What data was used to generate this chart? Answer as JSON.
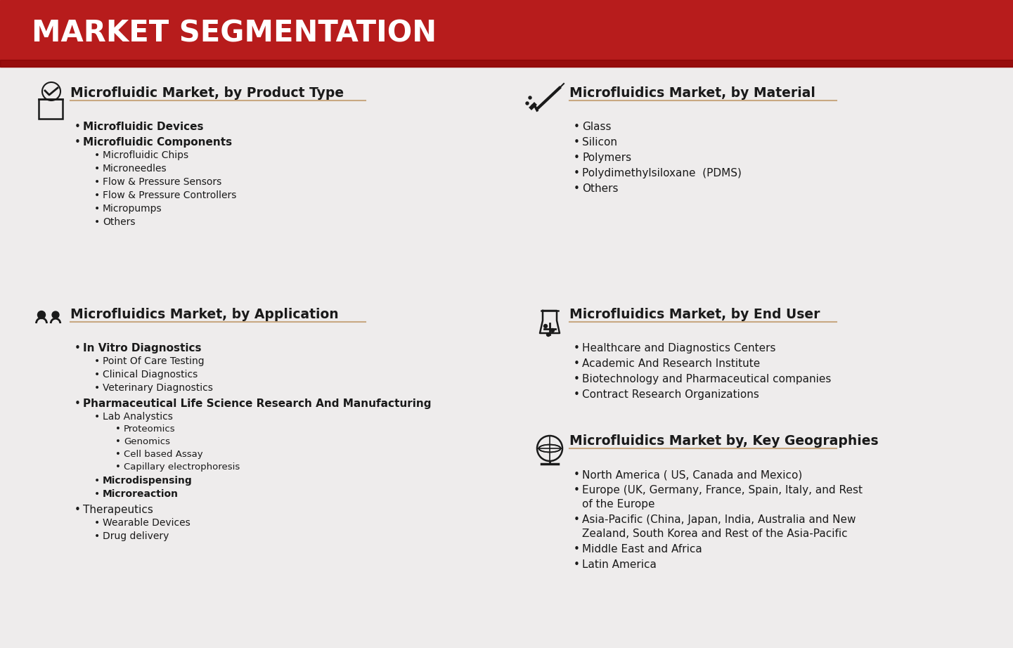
{
  "title": "MARKET SEGMENTATION",
  "title_bg_color": "#b71c1c",
  "title_text_color": "#ffffff",
  "bg_color": "#eeecec",
  "text_color": "#1a1a1a",
  "underline_color": "#c8a882",
  "section_title_color": "#1a1a1a",
  "sections": [
    {
      "id": "product",
      "col": 0,
      "row": 0,
      "title": "Microfluidic Market, by Product Type",
      "items": [
        {
          "text": "Microfluidic Devices",
          "level": 1,
          "bold": true
        },
        {
          "text": "Microfluidic Components",
          "level": 1,
          "bold": true
        },
        {
          "text": "Microfluidic Chips",
          "level": 2,
          "bold": false
        },
        {
          "text": "Microneedles",
          "level": 2,
          "bold": false
        },
        {
          "text": "Flow & Pressure Sensors",
          "level": 2,
          "bold": false
        },
        {
          "text": "Flow & Pressure Controllers",
          "level": 2,
          "bold": false
        },
        {
          "text": "Micropumps",
          "level": 2,
          "bold": false
        },
        {
          "text": "Others",
          "level": 2,
          "bold": false
        }
      ]
    },
    {
      "id": "application",
      "col": 0,
      "row": 1,
      "title": "Microfluidics Market, by Application",
      "items": [
        {
          "text": "In Vitro Diagnostics",
          "level": 1,
          "bold": true
        },
        {
          "text": "Point Of Care Testing",
          "level": 2,
          "bold": false
        },
        {
          "text": "Clinical Diagnostics",
          "level": 2,
          "bold": false
        },
        {
          "text": "Veterinary Diagnostics",
          "level": 2,
          "bold": false
        },
        {
          "text": "Pharmaceutical Life Science Research And Manufacturing",
          "level": 1,
          "bold": true
        },
        {
          "text": "Lab Analystics",
          "level": 2,
          "bold": false
        },
        {
          "text": "Proteomics",
          "level": 3,
          "bold": false
        },
        {
          "text": "Genomics",
          "level": 3,
          "bold": false
        },
        {
          "text": "Cell based Assay",
          "level": 3,
          "bold": false
        },
        {
          "text": "Capillary electrophoresis",
          "level": 3,
          "bold": false
        },
        {
          "text": "Microdispensing",
          "level": 2,
          "bold": true
        },
        {
          "text": "Microreaction",
          "level": 2,
          "bold": true
        },
        {
          "text": "Therapeutics",
          "level": 1,
          "bold": false
        },
        {
          "text": "Wearable Devices",
          "level": 2,
          "bold": false
        },
        {
          "text": "Drug delivery",
          "level": 2,
          "bold": false
        }
      ]
    },
    {
      "id": "material",
      "col": 1,
      "row": 0,
      "title": "Microfluidics Market, by Material",
      "items": [
        {
          "text": "Glass",
          "level": 1,
          "bold": false
        },
        {
          "text": "Silicon",
          "level": 1,
          "bold": false
        },
        {
          "text": "Polymers",
          "level": 1,
          "bold": false
        },
        {
          "text": "Polydimethylsiloxane  (PDMS)",
          "level": 1,
          "bold": false
        },
        {
          "text": "Others",
          "level": 1,
          "bold": false
        }
      ]
    },
    {
      "id": "enduser",
      "col": 1,
      "row": 1,
      "title": "Microfluidics Market, by End User",
      "items": [
        {
          "text": "Healthcare and Diagnostics Centers",
          "level": 1,
          "bold": false
        },
        {
          "text": "Academic And Research Institute",
          "level": 1,
          "bold": false
        },
        {
          "text": "Biotechnology and Pharmaceutical companies",
          "level": 1,
          "bold": false
        },
        {
          "text": "Contract Research Organizations",
          "level": 1,
          "bold": false
        }
      ]
    },
    {
      "id": "geography",
      "col": 1,
      "row": 2,
      "title": "Microfluidics Market by, Key Geographies",
      "items": [
        {
          "text": "North America ( US, Canada and Mexico)",
          "level": 1,
          "bold": false
        },
        {
          "text": "Europe (UK, Germany, France, Spain, Italy, and Rest\nof the Europe",
          "level": 1,
          "bold": false
        },
        {
          "text": "Asia-Pacific (China, Japan, India, Australia and New\nZealand, South Korea and Rest of the Asia-Pacific",
          "level": 1,
          "bold": false
        },
        {
          "text": "Middle East and Africa",
          "level": 1,
          "bold": false
        },
        {
          "text": "Latin America",
          "level": 1,
          "bold": false
        }
      ]
    }
  ]
}
